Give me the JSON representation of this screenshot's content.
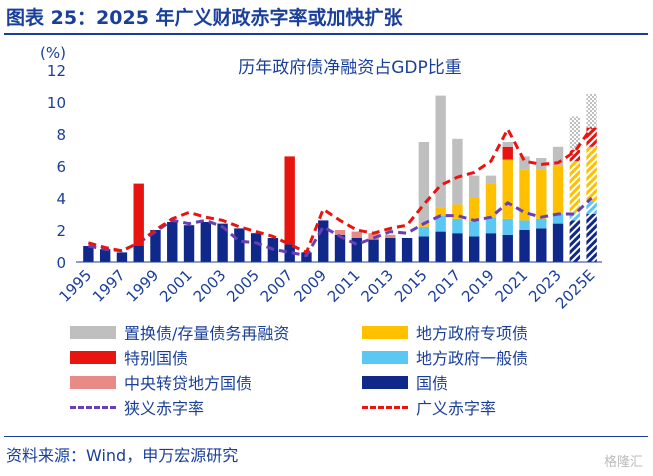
{
  "header": {
    "title": "图表 25：2025 年广义财政赤字率或加快扩张"
  },
  "footer": {
    "source": "资料来源：Wind，申万宏源研究",
    "watermark": "格隆汇"
  },
  "colors": {
    "replacement": "#bfbfbf",
    "special": "#e8140f",
    "central_transfer": "#e88b86",
    "local_special": "#ffc000",
    "local_general": "#5ac8f2",
    "national": "#10288a",
    "narrow_line": "#6a3fb5",
    "broad_line": "#e8140f",
    "text": "#1a3f9a"
  },
  "chart_data": {
    "type": "bar",
    "stacked": true,
    "title": "历年政府债净融资占GDP比重",
    "ylabel": "(%)",
    "ylim": [
      0,
      12
    ],
    "yticks": [
      0,
      2,
      4,
      6,
      8,
      10,
      12
    ],
    "x": [
      "1995",
      "1996",
      "1997",
      "1998",
      "1999",
      "2000",
      "2001",
      "2002",
      "2003",
      "2004",
      "2005",
      "2006",
      "2007",
      "2008",
      "2009",
      "2010",
      "2011",
      "2012",
      "2013",
      "2014",
      "2015",
      "2016",
      "2017",
      "2018",
      "2019",
      "2020",
      "2021",
      "2022",
      "2023",
      "2024",
      "2025E"
    ],
    "xtick_labels": [
      "1995",
      "1997",
      "1999",
      "2001",
      "2003",
      "2005",
      "2007",
      "2009",
      "2011",
      "2013",
      "2015",
      "2017",
      "2019",
      "2021",
      "2023",
      "2025E"
    ],
    "forecast_categories": [
      "2024",
      "2025E"
    ],
    "series": [
      {
        "key": "national",
        "name": "国债",
        "values": [
          1.0,
          0.8,
          0.6,
          1.0,
          2.0,
          2.5,
          2.3,
          2.5,
          2.4,
          2.1,
          1.8,
          1.5,
          1.1,
          0.6,
          2.6,
          1.7,
          1.5,
          1.4,
          1.5,
          1.5,
          1.6,
          1.9,
          1.8,
          1.6,
          1.8,
          1.7,
          2.0,
          2.1,
          2.4,
          2.6,
          3.0
        ]
      },
      {
        "key": "central_transfer",
        "name": "中央转贷地方国债",
        "values": [
          0,
          0,
          0,
          0,
          0,
          0,
          0,
          0,
          0,
          0,
          0,
          0,
          0,
          0,
          0,
          0.3,
          0.4,
          0.4,
          0.2,
          0,
          0,
          0,
          0,
          0,
          0,
          0,
          0,
          0,
          0,
          0,
          0
        ]
      },
      {
        "key": "local_general",
        "name": "地方政府一般债",
        "values": [
          0,
          0,
          0,
          0,
          0,
          0,
          0,
          0,
          0,
          0,
          0,
          0,
          0,
          0,
          0,
          0,
          0,
          0,
          0,
          0,
          0.6,
          1.0,
          0.9,
          0.9,
          1.0,
          1.0,
          0.6,
          0.6,
          0.6,
          0.5,
          0.8
        ]
      },
      {
        "key": "local_special",
        "name": "地方政府专项债",
        "values": [
          0,
          0,
          0,
          0,
          0,
          0,
          0,
          0,
          0,
          0,
          0,
          0,
          0,
          0,
          0,
          0,
          0,
          0,
          0,
          0,
          0.2,
          0.5,
          0.9,
          1.5,
          2.1,
          3.7,
          3.2,
          3.1,
          3.0,
          3.2,
          3.4
        ]
      },
      {
        "key": "special",
        "name": "特别国债",
        "values": [
          0,
          0,
          0,
          3.9,
          0,
          0,
          0,
          0,
          0,
          0,
          0,
          0,
          5.5,
          0,
          0,
          0,
          0,
          0,
          0,
          0,
          0,
          0,
          0,
          0,
          0,
          0.8,
          0,
          0,
          0,
          0.7,
          1.2
        ]
      },
      {
        "key": "replacement",
        "name": "置换债/存量债务再融资",
        "values": [
          0,
          0,
          0,
          0,
          0,
          0,
          0,
          0,
          0,
          0,
          0,
          0,
          0,
          0,
          0,
          0,
          0,
          0,
          0,
          0,
          5.1,
          7.0,
          4.1,
          1.4,
          0.5,
          0.3,
          0.8,
          0.7,
          1.2,
          2.1,
          2.1
        ]
      }
    ],
    "lines": [
      {
        "key": "narrow_line",
        "name": "狭义赤字率",
        "values": [
          1.0,
          0.8,
          0.7,
          1.2,
          1.9,
          2.6,
          2.4,
          2.6,
          2.2,
          1.3,
          1.2,
          0.8,
          0.6,
          0.4,
          2.2,
          1.6,
          1.1,
          1.5,
          1.9,
          1.8,
          2.4,
          2.9,
          2.9,
          2.6,
          2.8,
          3.7,
          3.1,
          2.8,
          3.0,
          3.0,
          4.0
        ]
      },
      {
        "key": "broad_line",
        "name": "广义赤字率",
        "values": [
          1.2,
          0.9,
          0.7,
          1.2,
          2.0,
          2.7,
          3.1,
          2.8,
          2.6,
          2.2,
          1.9,
          1.6,
          1.1,
          0.6,
          3.3,
          2.6,
          2.0,
          1.8,
          2.1,
          2.3,
          3.6,
          4.8,
          5.3,
          5.6,
          6.3,
          8.3,
          6.3,
          6.1,
          6.2,
          6.9,
          8.4
        ]
      }
    ],
    "legend": [
      {
        "key": "replacement",
        "label": "置换债/存量债务再融资",
        "type": "bar"
      },
      {
        "key": "local_special",
        "label": "地方政府专项债",
        "type": "bar"
      },
      {
        "key": "special",
        "label": "特别国债",
        "type": "bar"
      },
      {
        "key": "local_general",
        "label": "地方政府一般债",
        "type": "bar"
      },
      {
        "key": "central_transfer",
        "label": "中央转贷地方国债",
        "type": "bar"
      },
      {
        "key": "national",
        "label": "国债",
        "type": "bar"
      },
      {
        "key": "narrow_line",
        "label": "狭义赤字率",
        "type": "line"
      },
      {
        "key": "broad_line",
        "label": "广义赤字率",
        "type": "line"
      }
    ],
    "legend_position": "bottom",
    "grid": false
  }
}
